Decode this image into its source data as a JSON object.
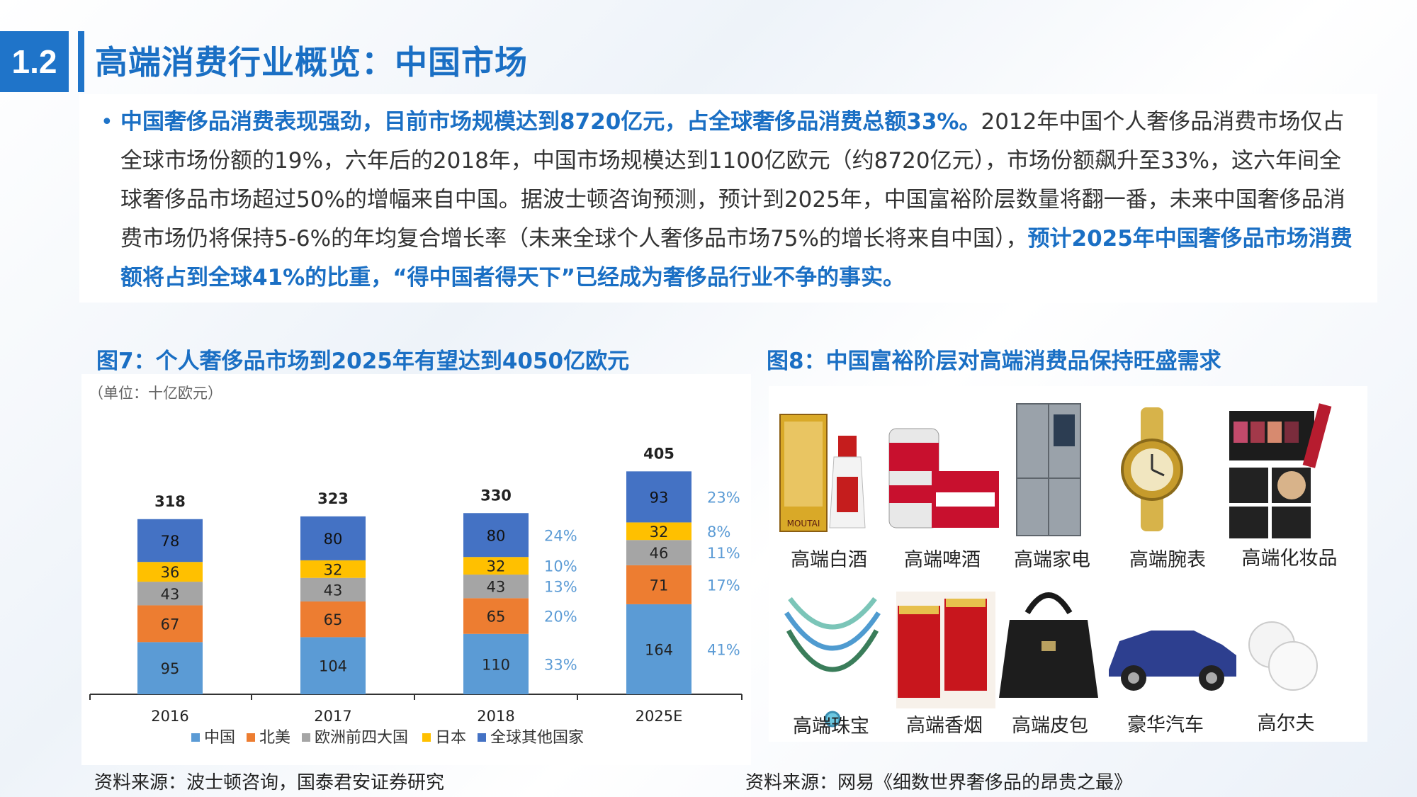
{
  "header": {
    "section_number": "1.2",
    "title": "高端消费行业概览：中国市场"
  },
  "intro": {
    "bullet": "•",
    "highlight_1": "中国奢侈品消费表现强劲，目前市场规模达到8720亿元，占全球奢侈品消费总额33%。",
    "body": "2012年中国个人奢侈品消费市场仅占全球市场份额的19%，六年后的2018年，中国市场规模达到1100亿欧元（约8720亿元），市场份额飙升至33%，这六年间全球奢侈品市场超过50%的增幅来自中国。据波士顿咨询预测，预计到2025年，中国富裕阶层数量将翻一番，未来中国奢侈品消费市场仍将保持5-6%的年均复合增长率（未来全球个人奢侈品市场75%的增长将来自中国），",
    "highlight_2": "预计2025年中国奢侈品市场消费额将占到全球41%的比重，“得中国者得天下”已经成为奢侈品行业不争的事实。"
  },
  "figure7": {
    "title": "图7：个人奢侈品市场到2025年有望达到4050亿欧元",
    "source": "资料来源：波士顿咨询，国泰君安证券研究"
  },
  "figure8": {
    "title": "图8：中国富裕阶层对高端消费品保持旺盛需求",
    "source": "资料来源：网易《细数世界奢侈品的昂贵之最》",
    "products": [
      {
        "label": "高端白酒",
        "icon": "baijiu-icon"
      },
      {
        "label": "高端啤酒",
        "icon": "beer-icon"
      },
      {
        "label": "高端家电",
        "icon": "fridge-icon"
      },
      {
        "label": "高端腕表",
        "icon": "watch-icon"
      },
      {
        "label": "高端化妆品",
        "icon": "cosmetics-icon"
      },
      {
        "label": "高端珠宝",
        "icon": "necklace-icon"
      },
      {
        "label": "高端香烟",
        "icon": "cigarette-icon"
      },
      {
        "label": "高端皮包",
        "icon": "handbag-icon"
      },
      {
        "label": "豪华汽车",
        "icon": "car-icon"
      },
      {
        "label": "高尔夫",
        "icon": "golf-ball-icon"
      }
    ]
  },
  "chart_data": {
    "type": "bar",
    "stacked": true,
    "unit_label": "（单位：十亿欧元）",
    "categories": [
      "2016",
      "2017",
      "2018",
      "2025E"
    ],
    "totals": [
      "318",
      "323",
      "330",
      "405"
    ],
    "series": [
      {
        "name": "中国",
        "color": "#5b9bd5",
        "values": [
          95,
          104,
          110,
          164
        ]
      },
      {
        "name": "北美",
        "color": "#ed7d31",
        "values": [
          67,
          65,
          65,
          71
        ]
      },
      {
        "name": "欧洲前四大国",
        "color": "#a5a5a5",
        "values": [
          43,
          43,
          43,
          46
        ]
      },
      {
        "name": "日本",
        "color": "#ffc000",
        "values": [
          36,
          32,
          32,
          32
        ]
      },
      {
        "name": "全球其他国家",
        "color": "#4472c4",
        "values": [
          78,
          80,
          80,
          93
        ]
      }
    ],
    "share_labels": {
      "2018": [
        "33%",
        "20%",
        "13%",
        "10%",
        "24%"
      ],
      "2025E": [
        "41%",
        "17%",
        "11%",
        "8%",
        "23%"
      ]
    },
    "share_color": "#5b9bd5",
    "legend_position": "bottom",
    "grid": false
  }
}
